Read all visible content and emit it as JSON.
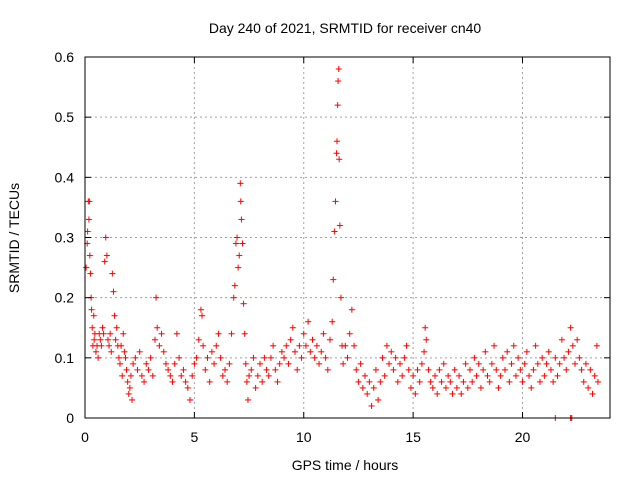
{
  "chart_data": {
    "type": "scatter",
    "title": "Day 240 of 2021, SRMTID for receiver cn40",
    "xlabel": "GPS time / hours",
    "ylabel": "SRMTID / TECUs",
    "xlim": [
      0,
      24
    ],
    "ylim": [
      0,
      0.6
    ],
    "xticks": [
      0,
      5,
      10,
      15,
      20
    ],
    "yticks": [
      0,
      0.1,
      0.2,
      0.3,
      0.4,
      0.5,
      0.6
    ],
    "grid": true,
    "marker": "+",
    "color": "#ff0000",
    "series": [
      {
        "name": "SRMTID",
        "points": [
          [
            0.05,
            0.25
          ],
          [
            0.1,
            0.29
          ],
          [
            0.12,
            0.31
          ],
          [
            0.15,
            0.36
          ],
          [
            0.18,
            0.33
          ],
          [
            0.2,
            0.36
          ],
          [
            0.22,
            0.27
          ],
          [
            0.25,
            0.24
          ],
          [
            0.28,
            0.2
          ],
          [
            0.3,
            0.18
          ],
          [
            0.33,
            0.15
          ],
          [
            0.36,
            0.12
          ],
          [
            0.4,
            0.17
          ],
          [
            0.42,
            0.13
          ],
          [
            0.45,
            0.14
          ],
          [
            0.5,
            0.11
          ],
          [
            0.55,
            0.12
          ],
          [
            0.6,
            0.1
          ],
          [
            0.65,
            0.14
          ],
          [
            0.7,
            0.13
          ],
          [
            0.75,
            0.12
          ],
          [
            0.8,
            0.15
          ],
          [
            0.85,
            0.14
          ],
          [
            0.9,
            0.26
          ],
          [
            0.95,
            0.3
          ],
          [
            1.0,
            0.27
          ],
          [
            1.05,
            0.13
          ],
          [
            1.1,
            0.12
          ],
          [
            1.15,
            0.14
          ],
          [
            1.2,
            0.11
          ],
          [
            1.25,
            0.24
          ],
          [
            1.3,
            0.21
          ],
          [
            1.35,
            0.17
          ],
          [
            1.4,
            0.13
          ],
          [
            1.45,
            0.15
          ],
          [
            1.5,
            0.12
          ],
          [
            1.55,
            0.1
          ],
          [
            1.6,
            0.09
          ],
          [
            1.65,
            0.12
          ],
          [
            1.7,
            0.07
          ],
          [
            1.75,
            0.14
          ],
          [
            1.8,
            0.11
          ],
          [
            1.85,
            0.1
          ],
          [
            1.9,
            0.08
          ],
          [
            1.95,
            0.06
          ],
          [
            2.0,
            0.04
          ],
          [
            2.05,
            0.05
          ],
          [
            2.1,
            0.07
          ],
          [
            2.15,
            0.03
          ],
          [
            2.2,
            0.09
          ],
          [
            2.3,
            0.1
          ],
          [
            2.4,
            0.08
          ],
          [
            2.5,
            0.11
          ],
          [
            2.6,
            0.07
          ],
          [
            2.7,
            0.06
          ],
          [
            2.8,
            0.09
          ],
          [
            2.9,
            0.08
          ],
          [
            3.0,
            0.1
          ],
          [
            3.1,
            0.07
          ],
          [
            3.2,
            0.13
          ],
          [
            3.25,
            0.2
          ],
          [
            3.3,
            0.15
          ],
          [
            3.4,
            0.12
          ],
          [
            3.5,
            0.14
          ],
          [
            3.6,
            0.11
          ],
          [
            3.7,
            0.09
          ],
          [
            3.8,
            0.08
          ],
          [
            3.9,
            0.07
          ],
          [
            4.0,
            0.06
          ],
          [
            4.1,
            0.09
          ],
          [
            4.2,
            0.14
          ],
          [
            4.3,
            0.1
          ],
          [
            4.4,
            0.07
          ],
          [
            4.5,
            0.08
          ],
          [
            4.6,
            0.06
          ],
          [
            4.7,
            0.05
          ],
          [
            4.8,
            0.03
          ],
          [
            4.9,
            0.07
          ],
          [
            5.0,
            0.09
          ],
          [
            5.1,
            0.1
          ],
          [
            5.2,
            0.13
          ],
          [
            5.3,
            0.18
          ],
          [
            5.35,
            0.17
          ],
          [
            5.4,
            0.12
          ],
          [
            5.5,
            0.08
          ],
          [
            5.6,
            0.1
          ],
          [
            5.7,
            0.06
          ],
          [
            5.8,
            0.11
          ],
          [
            5.9,
            0.09
          ],
          [
            6.0,
            0.12
          ],
          [
            6.1,
            0.14
          ],
          [
            6.2,
            0.1
          ],
          [
            6.3,
            0.07
          ],
          [
            6.4,
            0.08
          ],
          [
            6.5,
            0.06
          ],
          [
            6.6,
            0.09
          ],
          [
            6.7,
            0.14
          ],
          [
            6.8,
            0.2
          ],
          [
            6.85,
            0.22
          ],
          [
            6.9,
            0.29
          ],
          [
            6.95,
            0.3
          ],
          [
            7.0,
            0.25
          ],
          [
            7.05,
            0.27
          ],
          [
            7.1,
            0.39
          ],
          [
            7.12,
            0.36
          ],
          [
            7.15,
            0.33
          ],
          [
            7.2,
            0.29
          ],
          [
            7.25,
            0.19
          ],
          [
            7.3,
            0.14
          ],
          [
            7.35,
            0.09
          ],
          [
            7.4,
            0.06
          ],
          [
            7.45,
            0.03
          ],
          [
            7.5,
            0.07
          ],
          [
            7.6,
            0.08
          ],
          [
            7.7,
            0.1
          ],
          [
            7.8,
            0.05
          ],
          [
            7.9,
            0.07
          ],
          [
            8.0,
            0.09
          ],
          [
            8.1,
            0.06
          ],
          [
            8.2,
            0.1
          ],
          [
            8.3,
            0.08
          ],
          [
            8.4,
            0.07
          ],
          [
            8.5,
            0.1
          ],
          [
            8.6,
            0.12
          ],
          [
            8.7,
            0.08
          ],
          [
            8.8,
            0.06
          ],
          [
            8.9,
            0.09
          ],
          [
            9.0,
            0.11
          ],
          [
            9.1,
            0.1
          ],
          [
            9.2,
            0.12
          ],
          [
            9.3,
            0.09
          ],
          [
            9.4,
            0.13
          ],
          [
            9.5,
            0.15
          ],
          [
            9.6,
            0.11
          ],
          [
            9.7,
            0.08
          ],
          [
            9.8,
            0.12
          ],
          [
            9.9,
            0.1
          ],
          [
            10.0,
            0.14
          ],
          [
            10.1,
            0.12
          ],
          [
            10.2,
            0.16
          ],
          [
            10.3,
            0.11
          ],
          [
            10.4,
            0.13
          ],
          [
            10.5,
            0.1
          ],
          [
            10.6,
            0.12
          ],
          [
            10.7,
            0.09
          ],
          [
            10.8,
            0.11
          ],
          [
            10.9,
            0.14
          ],
          [
            11.0,
            0.1
          ],
          [
            11.1,
            0.08
          ],
          [
            11.2,
            0.13
          ],
          [
            11.3,
            0.16
          ],
          [
            11.35,
            0.23
          ],
          [
            11.4,
            0.31
          ],
          [
            11.45,
            0.36
          ],
          [
            11.5,
            0.44
          ],
          [
            11.52,
            0.46
          ],
          [
            11.55,
            0.52
          ],
          [
            11.57,
            0.56
          ],
          [
            11.6,
            0.58
          ],
          [
            11.62,
            0.43
          ],
          [
            11.65,
            0.32
          ],
          [
            11.7,
            0.2
          ],
          [
            11.75,
            0.12
          ],
          [
            11.8,
            0.09
          ],
          [
            11.9,
            0.12
          ],
          [
            12.0,
            0.1
          ],
          [
            12.1,
            0.14
          ],
          [
            12.2,
            0.18
          ],
          [
            12.3,
            0.12
          ],
          [
            12.4,
            0.08
          ],
          [
            12.5,
            0.06
          ],
          [
            12.6,
            0.09
          ],
          [
            12.7,
            0.05
          ],
          [
            12.8,
            0.07
          ],
          [
            12.9,
            0.04
          ],
          [
            13.0,
            0.06
          ],
          [
            13.1,
            0.02
          ],
          [
            13.2,
            0.05
          ],
          [
            13.3,
            0.08
          ],
          [
            13.4,
            0.03
          ],
          [
            13.5,
            0.06
          ],
          [
            13.6,
            0.1
          ],
          [
            13.7,
            0.07
          ],
          [
            13.8,
            0.12
          ],
          [
            13.9,
            0.09
          ],
          [
            14.0,
            0.11
          ],
          [
            14.1,
            0.08
          ],
          [
            14.2,
            0.1
          ],
          [
            14.3,
            0.06
          ],
          [
            14.4,
            0.09
          ],
          [
            14.5,
            0.07
          ],
          [
            14.6,
            0.1
          ],
          [
            14.7,
            0.12
          ],
          [
            14.8,
            0.08
          ],
          [
            14.9,
            0.05
          ],
          [
            15.0,
            0.07
          ],
          [
            15.1,
            0.04
          ],
          [
            15.2,
            0.08
          ],
          [
            15.3,
            0.06
          ],
          [
            15.4,
            0.09
          ],
          [
            15.5,
            0.11
          ],
          [
            15.55,
            0.15
          ],
          [
            15.6,
            0.13
          ],
          [
            15.7,
            0.08
          ],
          [
            15.8,
            0.06
          ],
          [
            15.9,
            0.05
          ],
          [
            16.0,
            0.07
          ],
          [
            16.1,
            0.04
          ],
          [
            16.2,
            0.08
          ],
          [
            16.3,
            0.06
          ],
          [
            16.4,
            0.09
          ],
          [
            16.5,
            0.05
          ],
          [
            16.6,
            0.07
          ],
          [
            16.7,
            0.06
          ],
          [
            16.8,
            0.04
          ],
          [
            16.9,
            0.08
          ],
          [
            17.0,
            0.05
          ],
          [
            17.1,
            0.07
          ],
          [
            17.2,
            0.04
          ],
          [
            17.3,
            0.06
          ],
          [
            17.4,
            0.09
          ],
          [
            17.5,
            0.05
          ],
          [
            17.6,
            0.08
          ],
          [
            17.7,
            0.06
          ],
          [
            17.8,
            0.1
          ],
          [
            17.9,
            0.07
          ],
          [
            18.0,
            0.09
          ],
          [
            18.1,
            0.05
          ],
          [
            18.2,
            0.08
          ],
          [
            18.3,
            0.11
          ],
          [
            18.4,
            0.07
          ],
          [
            18.5,
            0.06
          ],
          [
            18.6,
            0.09
          ],
          [
            18.7,
            0.12
          ],
          [
            18.8,
            0.08
          ],
          [
            18.9,
            0.05
          ],
          [
            19.0,
            0.07
          ],
          [
            19.1,
            0.1
          ],
          [
            19.2,
            0.08
          ],
          [
            19.3,
            0.11
          ],
          [
            19.4,
            0.06
          ],
          [
            19.5,
            0.09
          ],
          [
            19.6,
            0.12
          ],
          [
            19.7,
            0.07
          ],
          [
            19.8,
            0.1
          ],
          [
            19.9,
            0.08
          ],
          [
            20.0,
            0.06
          ],
          [
            20.1,
            0.09
          ],
          [
            20.2,
            0.11
          ],
          [
            20.3,
            0.07
          ],
          [
            20.4,
            0.05
          ],
          [
            20.5,
            0.08
          ],
          [
            20.6,
            0.12
          ],
          [
            20.7,
            0.09
          ],
          [
            20.8,
            0.06
          ],
          [
            20.9,
            0.1
          ],
          [
            21.0,
            0.07
          ],
          [
            21.1,
            0.09
          ],
          [
            21.2,
            0.11
          ],
          [
            21.3,
            0.08
          ],
          [
            21.4,
            0.06
          ],
          [
            21.5,
            0.1
          ],
          [
            21.6,
            0.07
          ],
          [
            21.7,
            0.09
          ],
          [
            21.8,
            0.13
          ],
          [
            21.9,
            0.1
          ],
          [
            22.0,
            0.08
          ],
          [
            22.1,
            0.11
          ],
          [
            22.2,
            0.15
          ],
          [
            22.3,
            0.12
          ],
          [
            22.4,
            0.09
          ],
          [
            22.5,
            0.13
          ],
          [
            22.6,
            0.1
          ],
          [
            22.7,
            0.08
          ],
          [
            22.8,
            0.06
          ],
          [
            22.9,
            0.09
          ],
          [
            23.0,
            0.05
          ],
          [
            23.1,
            0.08
          ],
          [
            23.2,
            0.04
          ],
          [
            23.3,
            0.07
          ],
          [
            23.4,
            0.12
          ],
          [
            23.45,
            0.06
          ],
          [
            21.5,
            0.0
          ],
          [
            22.2,
            0.0
          ],
          [
            22.25,
            0.0
          ]
        ]
      }
    ]
  }
}
